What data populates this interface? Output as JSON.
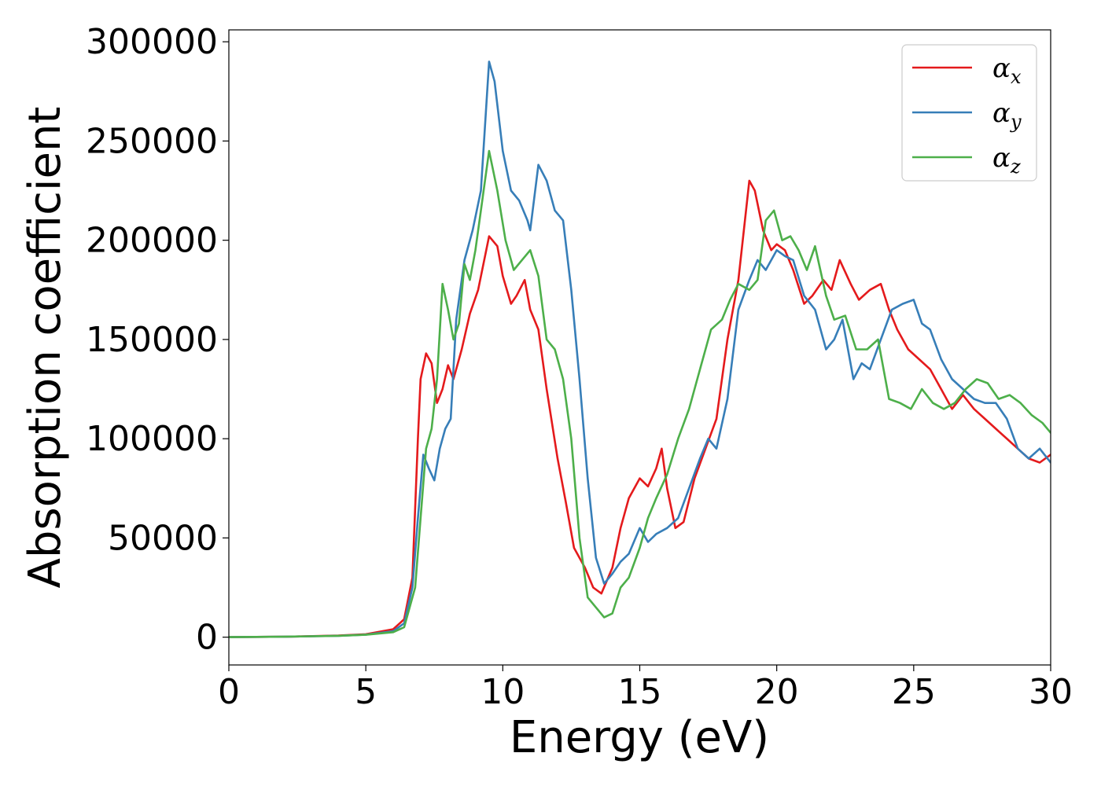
{
  "chart_data": {
    "type": "line",
    "xlabel": "Energy (eV)",
    "ylabel": "Absorption coefficient",
    "xlim": [
      0,
      30
    ],
    "ylim": [
      -14000,
      306000
    ],
    "xticks": [
      0,
      5,
      10,
      15,
      20,
      25,
      30
    ],
    "yticks": [
      0,
      50000,
      100000,
      150000,
      200000,
      250000,
      300000
    ],
    "xtick_labels": [
      "0",
      "5",
      "10",
      "15",
      "20",
      "25",
      "30"
    ],
    "ytick_labels": [
      "0",
      "50000",
      "100000",
      "150000",
      "200000",
      "250000",
      "300000"
    ],
    "grid": false,
    "legend_position": "top-right",
    "series": [
      {
        "name": "αx",
        "symbol": "α",
        "subscript": "x",
        "color": "#e41a1c",
        "x": [
          0,
          2,
          4,
          5,
          6,
          6.4,
          6.7,
          6.9,
          7.0,
          7.2,
          7.4,
          7.6,
          7.8,
          8.0,
          8.2,
          8.5,
          8.8,
          9.1,
          9.5,
          9.8,
          10.0,
          10.3,
          10.5,
          10.8,
          11.0,
          11.3,
          11.6,
          12.0,
          12.3,
          12.6,
          13.0,
          13.3,
          13.6,
          14.0,
          14.3,
          14.6,
          15.0,
          15.3,
          15.6,
          15.8,
          16.0,
          16.3,
          16.6,
          17.0,
          17.4,
          17.8,
          18.2,
          18.6,
          19.0,
          19.2,
          19.5,
          19.8,
          20.0,
          20.3,
          20.6,
          21.0,
          21.3,
          21.7,
          22.0,
          22.3,
          22.7,
          23.0,
          23.4,
          23.8,
          24.1,
          24.4,
          24.8,
          25.2,
          25.6,
          26.0,
          26.4,
          26.8,
          27.2,
          27.6,
          28.0,
          28.4,
          28.8,
          29.2,
          29.6,
          30.0
        ],
        "y": [
          0,
          200,
          800,
          1500,
          4000,
          9000,
          30000,
          100000,
          130000,
          143000,
          138000,
          118000,
          125000,
          137000,
          130000,
          145000,
          163000,
          175000,
          202000,
          197000,
          182000,
          168000,
          172000,
          180000,
          165000,
          155000,
          125000,
          90000,
          68000,
          45000,
          35000,
          25000,
          22000,
          35000,
          55000,
          70000,
          80000,
          76000,
          85000,
          95000,
          75000,
          55000,
          58000,
          80000,
          95000,
          110000,
          150000,
          180000,
          230000,
          225000,
          205000,
          195000,
          198000,
          195000,
          185000,
          168000,
          172000,
          180000,
          175000,
          190000,
          178000,
          170000,
          175000,
          178000,
          165000,
          155000,
          145000,
          140000,
          135000,
          125000,
          115000,
          122000,
          115000,
          110000,
          105000,
          100000,
          95000,
          90000,
          88000,
          92000
        ]
      },
      {
        "name": "αy",
        "symbol": "α",
        "subscript": "y",
        "color": "#377eb8",
        "x": [
          0,
          2,
          4,
          5,
          6,
          6.4,
          6.7,
          6.9,
          7.1,
          7.3,
          7.5,
          7.7,
          7.9,
          8.1,
          8.3,
          8.6,
          8.9,
          9.2,
          9.5,
          9.7,
          10.0,
          10.3,
          10.6,
          10.9,
          11.0,
          11.3,
          11.6,
          11.9,
          12.2,
          12.5,
          12.8,
          13.1,
          13.4,
          13.7,
          14.0,
          14.3,
          14.6,
          15.0,
          15.3,
          15.6,
          16.0,
          16.4,
          16.8,
          17.2,
          17.5,
          17.8,
          18.2,
          18.6,
          19.0,
          19.3,
          19.6,
          20.0,
          20.3,
          20.6,
          21.0,
          21.4,
          21.8,
          22.1,
          22.4,
          22.8,
          23.1,
          23.4,
          23.8,
          24.2,
          24.6,
          25.0,
          25.3,
          25.6,
          26.0,
          26.4,
          26.8,
          27.2,
          27.6,
          28.0,
          28.4,
          28.8,
          29.2,
          29.6,
          30.0
        ],
        "y": [
          0,
          200,
          700,
          1300,
          3000,
          7000,
          25000,
          60000,
          92000,
          85000,
          79000,
          95000,
          105000,
          110000,
          160000,
          190000,
          205000,
          225000,
          290000,
          280000,
          245000,
          225000,
          220000,
          210000,
          205000,
          238000,
          230000,
          215000,
          210000,
          175000,
          130000,
          80000,
          40000,
          27000,
          32000,
          38000,
          42000,
          55000,
          48000,
          52000,
          55000,
          60000,
          75000,
          90000,
          100000,
          95000,
          120000,
          165000,
          180000,
          190000,
          185000,
          195000,
          192000,
          190000,
          172000,
          165000,
          145000,
          150000,
          160000,
          130000,
          138000,
          135000,
          150000,
          165000,
          168000,
          170000,
          158000,
          155000,
          140000,
          130000,
          125000,
          120000,
          118000,
          118000,
          110000,
          95000,
          90000,
          95000,
          88000
        ]
      },
      {
        "name": "αz",
        "symbol": "α",
        "subscript": "z",
        "color": "#4daf4a",
        "x": [
          0,
          2,
          4,
          5,
          6,
          6.4,
          6.8,
          7.0,
          7.2,
          7.4,
          7.6,
          7.8,
          8.0,
          8.2,
          8.4,
          8.6,
          8.8,
          9.0,
          9.2,
          9.5,
          9.8,
          10.1,
          10.4,
          10.7,
          11.0,
          11.3,
          11.6,
          11.9,
          12.2,
          12.5,
          12.8,
          13.1,
          13.4,
          13.7,
          14.0,
          14.3,
          14.6,
          15.0,
          15.3,
          15.6,
          16.0,
          16.4,
          16.8,
          17.2,
          17.6,
          18.0,
          18.3,
          18.6,
          19.0,
          19.3,
          19.6,
          19.9,
          20.2,
          20.5,
          20.8,
          21.1,
          21.4,
          21.8,
          22.1,
          22.5,
          22.9,
          23.3,
          23.7,
          24.1,
          24.5,
          24.9,
          25.3,
          25.7,
          26.1,
          26.5,
          26.9,
          27.3,
          27.7,
          28.1,
          28.5,
          28.9,
          29.3,
          29.7,
          30.0
        ],
        "y": [
          0,
          200,
          700,
          1200,
          2500,
          5000,
          25000,
          60000,
          95000,
          105000,
          130000,
          178000,
          165000,
          150000,
          158000,
          188000,
          180000,
          195000,
          215000,
          245000,
          225000,
          200000,
          185000,
          190000,
          195000,
          182000,
          150000,
          145000,
          130000,
          100000,
          50000,
          20000,
          15000,
          10000,
          12000,
          25000,
          30000,
          45000,
          60000,
          70000,
          82000,
          100000,
          115000,
          135000,
          155000,
          160000,
          170000,
          178000,
          175000,
          180000,
          210000,
          215000,
          200000,
          202000,
          195000,
          185000,
          197000,
          172000,
          160000,
          162000,
          145000,
          145000,
          150000,
          120000,
          118000,
          115000,
          125000,
          118000,
          115000,
          118000,
          125000,
          130000,
          128000,
          120000,
          122000,
          118000,
          112000,
          108000,
          103000
        ]
      }
    ]
  }
}
